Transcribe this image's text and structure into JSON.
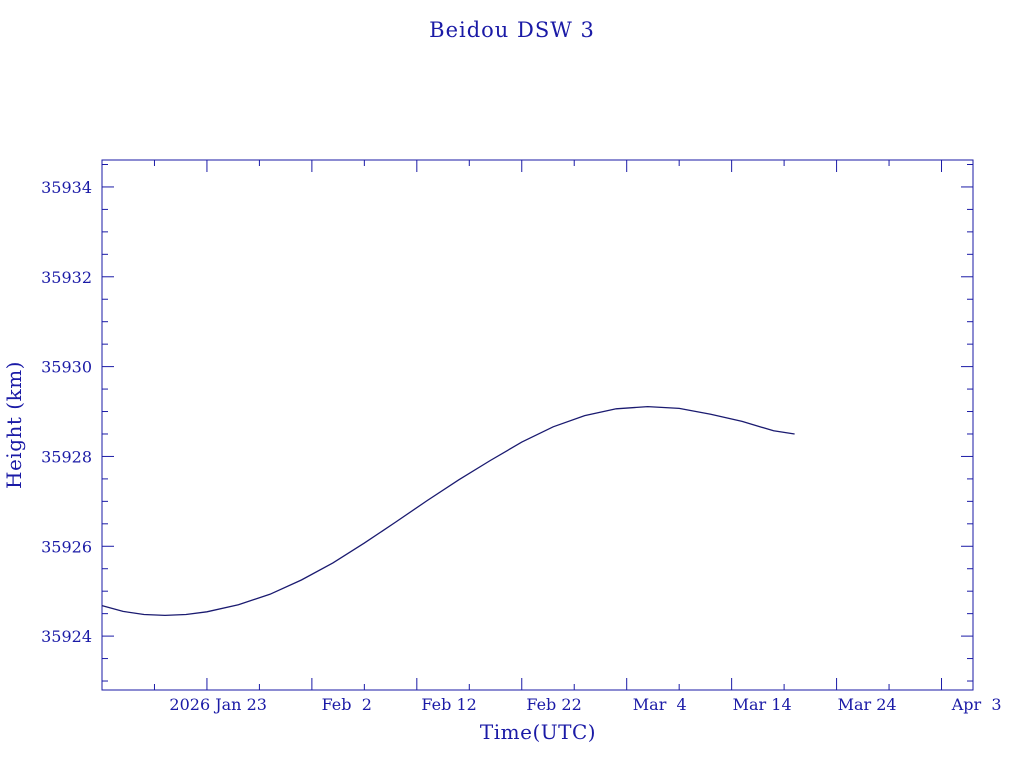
{
  "chart_data": {
    "type": "line",
    "title": "Beidou DSW 3",
    "xlabel": "Time(UTC)",
    "ylabel": "Height (km)",
    "x_tick_labels": [
      "2026 Jan 23",
      "Feb  2",
      "Feb 12",
      "Feb 22",
      "Mar  4",
      "Mar 14",
      "Mar 24",
      "Apr  3"
    ],
    "y_tick_labels": [
      "35924",
      "35926",
      "35928",
      "35930",
      "35932",
      "35934"
    ],
    "xlim": [
      "2026-01-13",
      "2026-04-06"
    ],
    "ylim": [
      35922.8,
      35934.6
    ],
    "grid": false,
    "line_color": "#1a1a70",
    "axis_color": "#1a1aa6",
    "series": [
      {
        "x": [
          "2026-01-13",
          "2026-01-15",
          "2026-01-17",
          "2026-01-19",
          "2026-01-21",
          "2026-01-23",
          "2026-01-26",
          "2026-01-29",
          "2026-02-01",
          "2026-02-04",
          "2026-02-07",
          "2026-02-10",
          "2026-02-13",
          "2026-02-16",
          "2026-02-19",
          "2026-02-22",
          "2026-02-25",
          "2026-02-28",
          "2026-03-03",
          "2026-03-06",
          "2026-03-09",
          "2026-03-12",
          "2026-03-15",
          "2026-03-18",
          "2026-03-20"
        ],
        "y": [
          35924.68,
          35924.55,
          35924.48,
          35924.46,
          35924.48,
          35924.54,
          35924.7,
          35924.93,
          35925.25,
          35925.63,
          35926.07,
          35926.54,
          35927.02,
          35927.48,
          35927.91,
          35928.32,
          35928.66,
          35928.91,
          35929.06,
          35929.11,
          35929.07,
          35928.94,
          35928.78,
          35928.57,
          35928.5
        ]
      }
    ]
  }
}
